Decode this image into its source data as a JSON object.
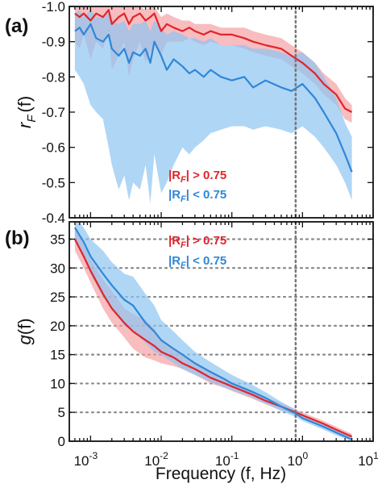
{
  "figure": {
    "x_axis_label": "Frequency (f, Hz)",
    "colors": {
      "red_line": "#e0242b",
      "red_band": "#f29a9c",
      "blue_line": "#2f86d8",
      "blue_band": "#8ec4f2",
      "ref_line": "#777777",
      "grid": "#8a8a8a"
    }
  },
  "chart_data": [
    {
      "type": "line",
      "panel_label": "(a)",
      "y_label_main": "r",
      "y_label_sub": "F",
      "y_label_arg": "(f)",
      "x_scale": "log",
      "x_range": [
        0.0005,
        10
      ],
      "x_tick_labels": [
        "10-3",
        "10-2",
        "10-1",
        "100",
        "101"
      ],
      "y_range": [
        -1.0,
        -0.4
      ],
      "y_reversed": true,
      "y_ticks": [
        "-1.0",
        "-0.9",
        "-0.8",
        "-0.7",
        "-0.6",
        "-0.5",
        "-0.4"
      ],
      "reference_vline_x": 0.8,
      "grid": false,
      "legend_position": "lower-right",
      "series": [
        {
          "name": "|RF| > 0.75",
          "legend_parts": [
            "|R",
            "F",
            "| > 0.75"
          ],
          "color": "#e0242b",
          "band_color": "#f29a9c",
          "x": [
            0.0006,
            0.0007,
            0.0008,
            0.001,
            0.0012,
            0.0015,
            0.0018,
            0.002,
            0.0025,
            0.003,
            0.0035,
            0.004,
            0.005,
            0.006,
            0.007,
            0.008,
            0.01,
            0.012,
            0.015,
            0.02,
            0.025,
            0.03,
            0.04,
            0.05,
            0.07,
            0.1,
            0.15,
            0.2,
            0.3,
            0.5,
            0.7,
            1.0,
            1.5,
            2.0,
            3.0,
            4.0,
            5.0
          ],
          "y": [
            -0.98,
            -0.97,
            -0.98,
            -0.96,
            -0.98,
            -0.97,
            -0.99,
            -0.95,
            -0.97,
            -0.98,
            -0.95,
            -0.97,
            -0.98,
            -0.96,
            -0.97,
            -0.98,
            -0.93,
            -0.95,
            -0.94,
            -0.93,
            -0.94,
            -0.93,
            -0.92,
            -0.93,
            -0.92,
            -0.92,
            -0.91,
            -0.9,
            -0.89,
            -0.88,
            -0.86,
            -0.84,
            -0.81,
            -0.78,
            -0.75,
            -0.71,
            -0.7
          ],
          "lower": [
            -1.0,
            -1.0,
            -1.0,
            -1.0,
            -1.0,
            -1.0,
            -1.0,
            -1.0,
            -1.0,
            -1.0,
            -1.0,
            -1.0,
            -1.0,
            -0.99,
            -1.0,
            -1.0,
            -0.97,
            -0.98,
            -0.97,
            -0.96,
            -0.96,
            -0.95,
            -0.95,
            -0.95,
            -0.94,
            -0.94,
            -0.94,
            -0.93,
            -0.92,
            -0.91,
            -0.89,
            -0.87,
            -0.84,
            -0.81,
            -0.78,
            -0.74,
            -0.72
          ],
          "upper": [
            -0.9,
            -0.88,
            -0.92,
            -0.85,
            -0.9,
            -0.88,
            -0.93,
            -0.82,
            -0.86,
            -0.9,
            -0.8,
            -0.85,
            -0.9,
            -0.84,
            -0.87,
            -0.9,
            -0.86,
            -0.9,
            -0.9,
            -0.9,
            -0.91,
            -0.9,
            -0.89,
            -0.9,
            -0.89,
            -0.89,
            -0.88,
            -0.87,
            -0.86,
            -0.85,
            -0.83,
            -0.81,
            -0.78,
            -0.75,
            -0.72,
            -0.68,
            -0.67
          ]
        },
        {
          "name": "|RF| < 0.75",
          "legend_parts": [
            "|R",
            "F",
            "| < 0.75"
          ],
          "color": "#2f86d8",
          "band_color": "#8ec4f2",
          "x": [
            0.0006,
            0.0007,
            0.0008,
            0.001,
            0.0012,
            0.0015,
            0.0018,
            0.002,
            0.0025,
            0.003,
            0.0035,
            0.004,
            0.005,
            0.006,
            0.007,
            0.008,
            0.01,
            0.012,
            0.015,
            0.02,
            0.025,
            0.03,
            0.04,
            0.05,
            0.07,
            0.1,
            0.15,
            0.2,
            0.3,
            0.5,
            0.7,
            1.0,
            1.5,
            2.0,
            3.0,
            4.0,
            5.0
          ],
          "y": [
            -0.93,
            -0.94,
            -0.92,
            -0.95,
            -0.91,
            -0.9,
            -0.92,
            -0.88,
            -0.86,
            -0.88,
            -0.84,
            -0.87,
            -0.86,
            -0.88,
            -0.84,
            -0.9,
            -0.86,
            -0.82,
            -0.85,
            -0.83,
            -0.81,
            -0.82,
            -0.8,
            -0.82,
            -0.8,
            -0.79,
            -0.8,
            -0.77,
            -0.79,
            -0.77,
            -0.76,
            -0.78,
            -0.74,
            -0.7,
            -0.64,
            -0.58,
            -0.53
          ],
          "lower": [
            -0.98,
            -0.99,
            -0.97,
            -0.99,
            -0.97,
            -0.97,
            -0.98,
            -0.96,
            -0.95,
            -0.96,
            -0.93,
            -0.95,
            -0.95,
            -0.96,
            -0.93,
            -0.96,
            -0.94,
            -0.92,
            -0.93,
            -0.92,
            -0.91,
            -0.91,
            -0.9,
            -0.91,
            -0.89,
            -0.89,
            -0.89,
            -0.88,
            -0.88,
            -0.87,
            -0.86,
            -0.87,
            -0.84,
            -0.8,
            -0.74,
            -0.67,
            -0.63
          ],
          "upper": [
            -0.82,
            -0.8,
            -0.78,
            -0.72,
            -0.7,
            -0.68,
            -0.6,
            -0.55,
            -0.48,
            -0.52,
            -0.45,
            -0.5,
            -0.48,
            -0.55,
            -0.44,
            -0.58,
            -0.47,
            -0.5,
            -0.55,
            -0.6,
            -0.58,
            -0.6,
            -0.62,
            -0.64,
            -0.65,
            -0.66,
            -0.66,
            -0.65,
            -0.66,
            -0.65,
            -0.64,
            -0.66,
            -0.63,
            -0.6,
            -0.55,
            -0.5,
            -0.45
          ]
        }
      ]
    },
    {
      "type": "line",
      "panel_label": "(b)",
      "y_label_main": "g",
      "y_label_arg": "(f)",
      "x_scale": "log",
      "x_range": [
        0.0005,
        10
      ],
      "x_tick_labels": [
        "10-3",
        "10-2",
        "10-1",
        "100",
        "101"
      ],
      "y_range": [
        0,
        38
      ],
      "y_ticks": [
        "0",
        "5",
        "10",
        "15",
        "20",
        "25",
        "30",
        "35"
      ],
      "reference_vline_x": 0.8,
      "grid": true,
      "legend_position": "top-center",
      "series": [
        {
          "name": "|RF| > 0.75",
          "legend_parts": [
            "|R",
            "F",
            "| > 0.75"
          ],
          "color": "#e0242b",
          "band_color": "#f29a9c",
          "x": [
            0.0006,
            0.0008,
            0.001,
            0.0015,
            0.002,
            0.003,
            0.004,
            0.006,
            0.008,
            0.01,
            0.015,
            0.02,
            0.03,
            0.05,
            0.08,
            0.1,
            0.2,
            0.3,
            0.5,
            0.8,
            1.0,
            2.0,
            3.0,
            5.0
          ],
          "y": [
            35,
            32,
            29.5,
            25.5,
            23,
            20.5,
            19,
            17.5,
            16.5,
            15.5,
            14.5,
            13.5,
            12.5,
            11,
            10,
            9.5,
            8,
            7,
            6,
            5,
            4.5,
            3,
            2,
            0.8
          ],
          "lower": [
            33,
            30,
            27.5,
            23,
            20.5,
            18,
            16,
            14.5,
            14,
            13.5,
            13,
            12.5,
            11.5,
            10,
            9.2,
            8.7,
            7.3,
            6.4,
            5.4,
            4.5,
            4,
            2.5,
            1.5,
            0.3
          ],
          "upper": [
            37,
            34,
            31.5,
            28,
            26,
            23,
            22,
            21,
            19.5,
            17.5,
            16,
            14.8,
            13.5,
            12,
            10.8,
            10.3,
            8.7,
            7.6,
            6.6,
            5.5,
            5,
            3.5,
            2.5,
            1.3
          ]
        },
        {
          "name": "|RF| < 0.75",
          "legend_parts": [
            "|R",
            "F",
            "| < 0.75"
          ],
          "color": "#2f86d8",
          "band_color": "#8ec4f2",
          "x": [
            0.0006,
            0.0008,
            0.001,
            0.0015,
            0.002,
            0.003,
            0.004,
            0.006,
            0.008,
            0.01,
            0.015,
            0.02,
            0.03,
            0.05,
            0.08,
            0.1,
            0.2,
            0.3,
            0.5,
            0.8,
            1.0,
            2.0,
            3.0,
            5.0
          ],
          "y": [
            37,
            34.5,
            32,
            29,
            27,
            24.5,
            23.5,
            20.5,
            19,
            17.5,
            16,
            15,
            13.5,
            12,
            10.7,
            10,
            8.5,
            7.5,
            6,
            4.8,
            4,
            2.5,
            1.5,
            0.3
          ],
          "lower": [
            35,
            32,
            29,
            25,
            23,
            20,
            19,
            17,
            15.5,
            15,
            13.5,
            12.5,
            11.5,
            10.3,
            9.3,
            8.8,
            7.5,
            6.5,
            5.2,
            4.2,
            3.5,
            2,
            1,
            0
          ],
          "upper": [
            39,
            37,
            35,
            33,
            31,
            29,
            28.5,
            25.5,
            23.5,
            21,
            19,
            17.5,
            15.5,
            13.7,
            12.2,
            11.5,
            9.7,
            8.5,
            6.8,
            5.5,
            4.7,
            3,
            2,
            0.8
          ]
        }
      ]
    }
  ]
}
